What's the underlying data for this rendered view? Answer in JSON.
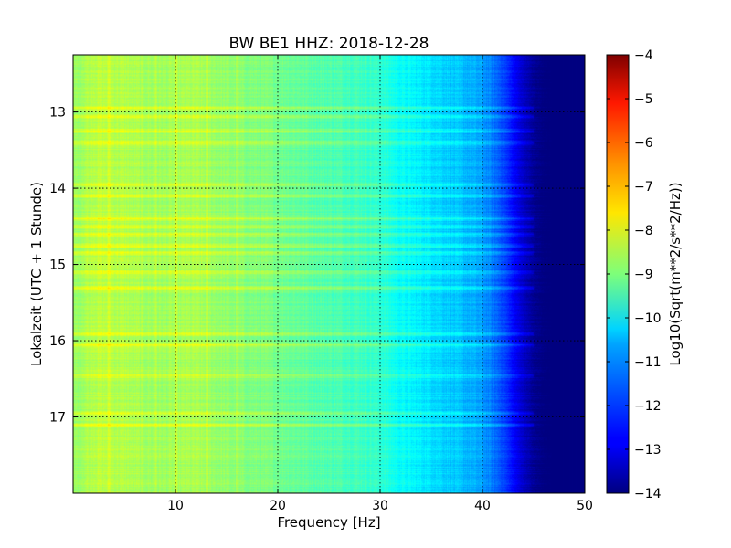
{
  "chart_data": {
    "type": "heatmap",
    "title": "BW BE1 HHZ: 2018-12-28",
    "xlabel": "Frequency [Hz]",
    "ylabel": "Lokalzeit (UTC + 1 Stunde)",
    "colorbar_label": "Log10(Sqrt(m**2/s**2/Hz))",
    "xlim": [
      0,
      50
    ],
    "ylim": [
      12.25,
      18.0
    ],
    "y_inverted": true,
    "x_ticks": [
      10,
      20,
      30,
      40,
      50
    ],
    "x_tick_labels": [
      "10",
      "20",
      "30",
      "40",
      "50"
    ],
    "y_ticks": [
      13,
      14,
      15,
      16,
      17
    ],
    "y_tick_labels": [
      "13",
      "14",
      "15",
      "16",
      "17"
    ],
    "colorbar_range": [
      -14,
      -4
    ],
    "colorbar_ticks": [
      -4,
      -5,
      -6,
      -7,
      -8,
      -9,
      -10,
      -11,
      -12,
      -13,
      -14
    ],
    "colorbar_tick_labels": [
      "−4",
      "−5",
      "−6",
      "−7",
      "−8",
      "−9",
      "−10",
      "−11",
      "−12",
      "−13",
      "−14"
    ],
    "colormap": "jet",
    "grid": true,
    "frequency_profile": {
      "frequency_hz": [
        0,
        2,
        5,
        8,
        12,
        16,
        20,
        24,
        28,
        30,
        32,
        35,
        38,
        40,
        42,
        43,
        44,
        45,
        46,
        50
      ],
      "log10_asd": [
        -8.8,
        -8.4,
        -8.5,
        -8.7,
        -8.6,
        -8.9,
        -9.1,
        -9.4,
        -9.6,
        -9.8,
        -10.2,
        -10.5,
        -10.9,
        -11.2,
        -12.0,
        -12.7,
        -13.3,
        -13.8,
        -14.0,
        -14.0
      ]
    },
    "bright_time_bands": [
      12.95,
      13.05,
      13.25,
      13.4,
      13.95,
      14.1,
      14.4,
      14.5,
      14.6,
      14.75,
      14.85,
      15.1,
      15.3,
      15.9,
      16.05,
      16.45,
      16.95,
      17.1
    ],
    "bright_frequency_lines": [
      3.5,
      8.0,
      10.0,
      13.0,
      16.0
    ]
  }
}
